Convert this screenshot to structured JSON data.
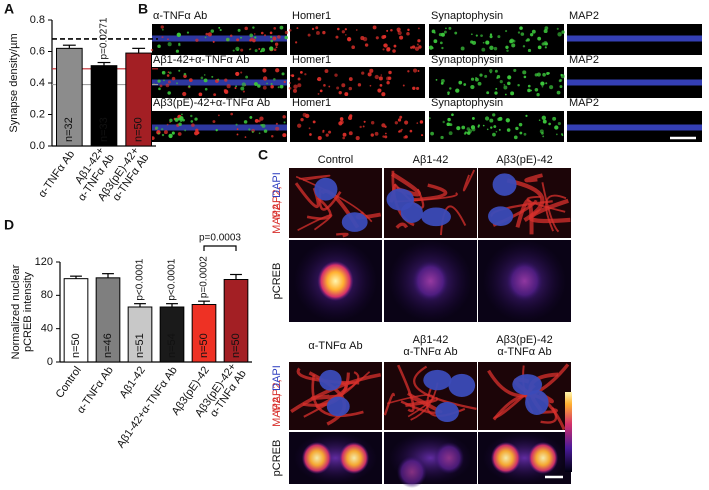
{
  "panel_labels": {
    "A": "A",
    "B": "B",
    "C": "C",
    "D": "D"
  },
  "chart_data": [
    {
      "type": "bar",
      "ylabel": "Synapse density/µm",
      "categories": [
        "α-TNFα Ab",
        "Aβ1-42+\nα-TNFα Ab",
        "Aβ3(pE)-42+\nα-TNFα Ab"
      ],
      "values": [
        0.62,
        0.51,
        0.59
      ],
      "errors": [
        0.02,
        0.02,
        0.03
      ],
      "colors": [
        "#8c8c8c",
        "#000000",
        "#a31f24"
      ],
      "n_labels": [
        "n=32",
        "n=33",
        "n=50"
      ],
      "n_label_colors": [
        "#dddddd",
        "#ffffff",
        "#7a1a1d"
      ],
      "p_labels": [
        null,
        "p=0.0271",
        null
      ],
      "ylim": [
        0,
        0.8
      ],
      "yticks": [
        {
          "value": 0,
          "label": "0.0"
        },
        0.2,
        0.4,
        0.6,
        0.8
      ],
      "reference_lines": [
        {
          "value": 0.68,
          "color": "#000000",
          "dashed": true
        },
        {
          "value": 0.49,
          "color": "#c0272d",
          "dashed": false
        },
        {
          "value": 0.39,
          "color": "#a0a0a0",
          "dashed": false
        }
      ]
    },
    {
      "type": "bar",
      "ylabel": "Normalized nuclear\npCREB intensity",
      "categories": [
        "Control",
        "α-TNFα Ab",
        "Aβ1-42",
        "Aβ1-42+α-TNFα Ab",
        "Aβ3(pE)-42",
        "Aβ3(pE)-42+\nα-TNFα Ab"
      ],
      "values": [
        100,
        101,
        66,
        66,
        69,
        99
      ],
      "errors": [
        3,
        5,
        4,
        4,
        4,
        6
      ],
      "colors": [
        "#ffffff",
        "#7f7f7f",
        "#c8c8c8",
        "#1a1a1a",
        "#ee3124",
        "#a31f24"
      ],
      "n_labels": [
        "n=50",
        "n=46",
        "n=51",
        "n=54",
        "n=50",
        "n=50"
      ],
      "n_label_colors": [
        "#000000",
        "#cccccc",
        "#000000",
        "#ffffff",
        "#000000",
        "#c85a5a"
      ],
      "p_labels": [
        null,
        null,
        "p<0.0001",
        "p<0.0001",
        "p=0.0002",
        null
      ],
      "bracket_label": "p=0.0003",
      "ylim": [
        0,
        120
      ],
      "yticks": [
        0,
        40,
        80,
        120
      ]
    }
  ],
  "panel_b": {
    "rows": [
      {
        "label": "α-TNFα Ab",
        "channels": [
          "Homer1",
          "Synaptophysin",
          "MAP2"
        ]
      },
      {
        "label": "Aβ1-42+α-TNFα Ab",
        "channels": [
          "Homer1",
          "Synaptophysin",
          "MAP2"
        ]
      },
      {
        "label": "Aβ3(pE)-42+α-TNFα Ab",
        "channels": [
          "Homer1",
          "Synaptophysin",
          "MAP2"
        ]
      }
    ]
  },
  "panel_c": {
    "top_columns": [
      "Control",
      "Aβ1-42",
      "Aβ3(pE)-42"
    ],
    "bottom_columns": [
      "α-TNFα Ab",
      "Aβ1-42\nα-TNFα Ab",
      "Aβ3(pE)-42\nα-TNFα Ab"
    ],
    "stain_labels": [
      "MAP2,",
      "DAPI"
    ],
    "pcreb_label": "pCREB"
  }
}
